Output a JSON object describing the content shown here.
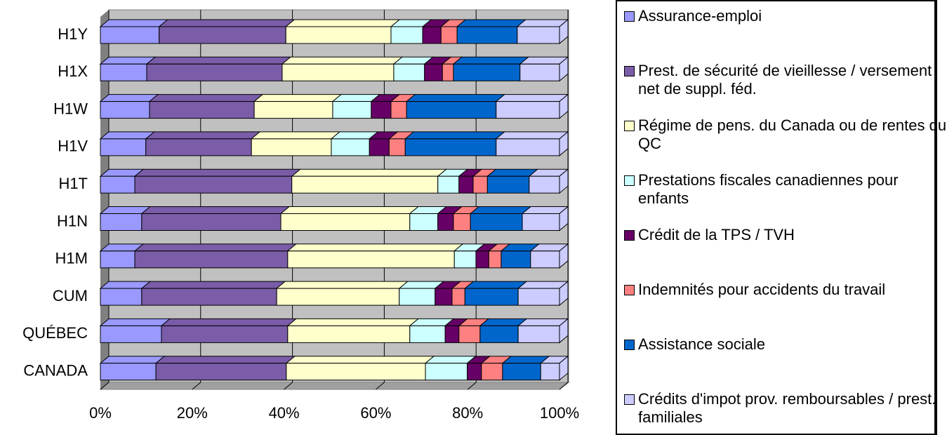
{
  "chart_data": {
    "type": "stacked_bar_horizontal",
    "categories": [
      "H1Y",
      "H1X",
      "H1W",
      "H1V",
      "H1T",
      "H1N",
      "H1M",
      "CUM",
      "QUÉBEC",
      "CANADA"
    ],
    "series": [
      {
        "name": "Assurance-emploi",
        "color": "#9999ff",
        "values": [
          12.8,
          10.1,
          10.7,
          9.9,
          7.5,
          9.0,
          7.5,
          9.0,
          13.3,
          12.1
        ]
      },
      {
        "name": "Prest. de sécurité de vieillesse / versement net de suppl. féd.",
        "color": "#7a5ca8",
        "values": [
          27.6,
          29.5,
          22.8,
          23.0,
          34.2,
          30.3,
          33.3,
          29.4,
          27.5,
          28.4
        ]
      },
      {
        "name": "Régime de pens. du Canada ou de rentes du QC",
        "color": "#ffffcc",
        "values": [
          22.9,
          24.3,
          17.1,
          17.4,
          31.8,
          28.1,
          36.3,
          26.7,
          26.6,
          30.3
        ]
      },
      {
        "name": "Prestations fiscales canadiennes pour enfants",
        "color": "#ccffff",
        "values": [
          6.9,
          6.7,
          8.4,
          8.3,
          4.6,
          6.1,
          4.7,
          7.8,
          7.7,
          9.1
        ]
      },
      {
        "name": "Crédit de la TPS / TVH",
        "color": "#660066",
        "values": [
          4.0,
          3.9,
          4.3,
          4.3,
          3.1,
          3.4,
          2.8,
          3.7,
          3.0,
          3.1
        ]
      },
      {
        "name": "Indemnités pour accidents du travail",
        "color": "#ff8080",
        "values": [
          3.5,
          2.4,
          3.4,
          3.5,
          3.1,
          3.7,
          2.7,
          2.8,
          4.6,
          4.6
        ]
      },
      {
        "name": "Assistance sociale",
        "color": "#0066cc",
        "values": [
          13.1,
          14.5,
          19.5,
          19.8,
          9.1,
          11.3,
          6.4,
          11.6,
          8.3,
          8.3
        ]
      },
      {
        "name": "Crédits d'impot prov. remboursables / prest. familiales",
        "color": "#ccccff",
        "values": [
          9.2,
          8.6,
          13.8,
          13.8,
          6.6,
          8.1,
          6.3,
          9.0,
          9.0,
          4.1
        ]
      }
    ],
    "xlim": [
      0,
      100
    ],
    "xticks": [
      {
        "value": 0,
        "label": "0%"
      },
      {
        "value": 20,
        "label": "20%"
      },
      {
        "value": 40,
        "label": "40%"
      },
      {
        "value": 60,
        "label": "60%"
      },
      {
        "value": 80,
        "label": "80%"
      },
      {
        "value": 100,
        "label": "100%"
      }
    ],
    "grid": true
  }
}
